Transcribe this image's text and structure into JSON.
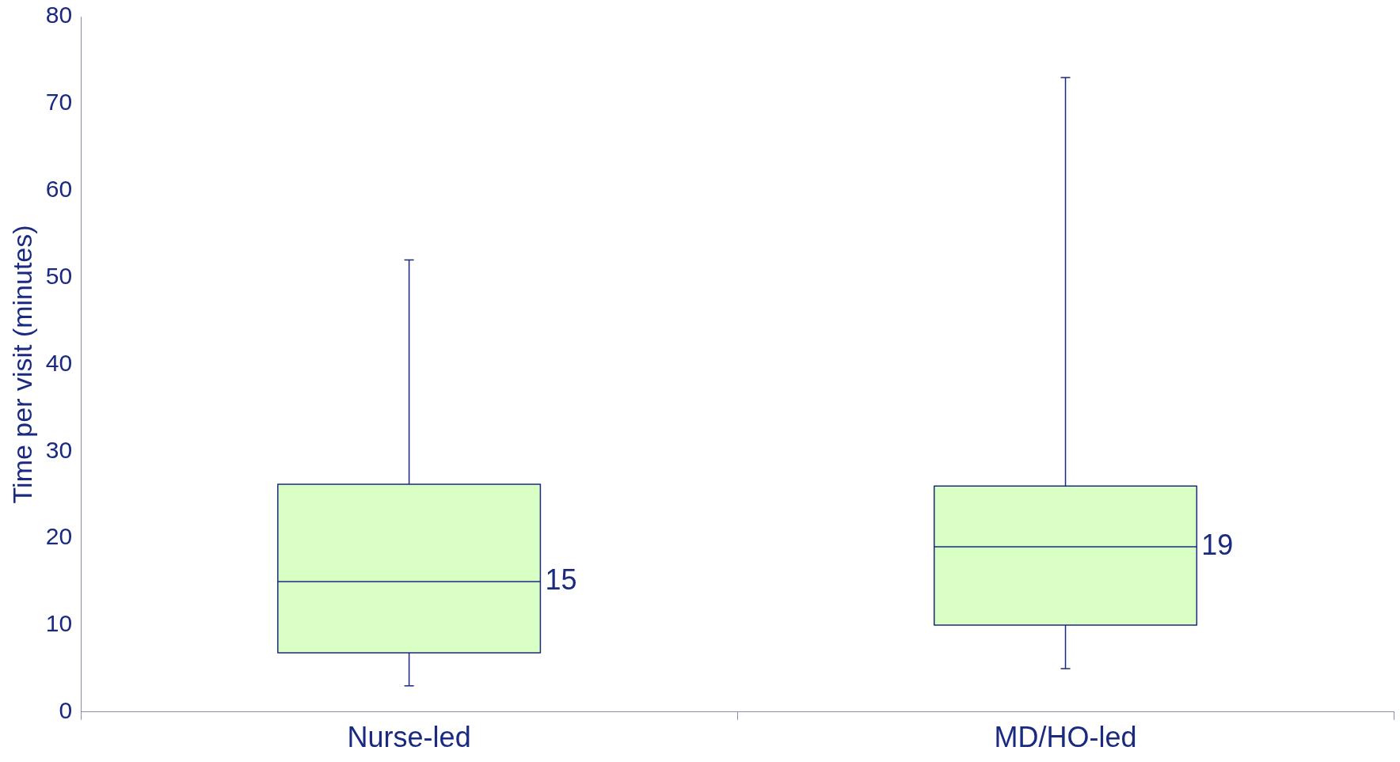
{
  "chart_data": {
    "type": "box",
    "ylabel": "Time per visit (minutes)",
    "categories": [
      "Nurse-led",
      "MD/HO-led"
    ],
    "boxes": [
      {
        "low": 3,
        "q1": 6.8,
        "median": 15,
        "q3": 26.2,
        "high": 52
      },
      {
        "low": 5,
        "q1": 10,
        "median": 19,
        "q3": 26,
        "high": 73
      }
    ],
    "value_labels": [
      "15",
      "19"
    ],
    "color": "#d9ffc4",
    "ylim": [
      0,
      80
    ],
    "yticks": [
      0,
      10,
      20,
      30,
      40,
      50,
      60,
      70,
      80
    ]
  }
}
